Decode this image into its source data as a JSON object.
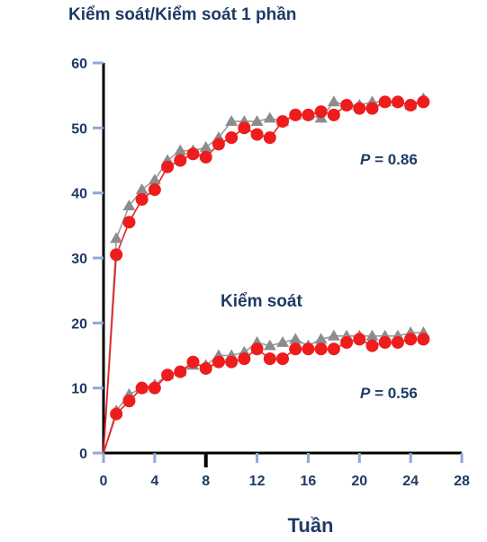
{
  "chart_data": {
    "type": "line",
    "title": "Kiểm soát/Kiểm soát 1 phần",
    "xlabel": "Tuần",
    "ylabel": "",
    "xlim": [
      0,
      28
    ],
    "ylim": [
      0,
      60
    ],
    "xticks": [
      0,
      4,
      8,
      12,
      16,
      20,
      24,
      28
    ],
    "yticks": [
      0,
      10,
      20,
      30,
      40,
      50,
      60
    ],
    "grid": false,
    "annotations": [
      {
        "text": "Kiểm soát"
      },
      {
        "p_label": "P",
        "p_value": "= 0.86"
      },
      {
        "p_label": "P",
        "p_value": "= 0.56"
      }
    ],
    "series": [
      {
        "group": "upper",
        "color": "#8c8c8c",
        "marker": "triangle",
        "x": [
          0,
          1,
          2,
          3,
          4,
          5,
          6,
          7,
          8,
          9,
          10,
          11,
          12,
          13,
          14,
          15,
          16,
          17,
          18,
          19,
          20,
          21,
          22,
          23,
          24,
          25
        ],
        "values": [
          0,
          33,
          38,
          40.5,
          42,
          45,
          46.5,
          46.5,
          47,
          48.5,
          51,
          51,
          51,
          51.5,
          51,
          52,
          52,
          51.5,
          54,
          53.5,
          53.5,
          54,
          54,
          54,
          53.5,
          54.5
        ]
      },
      {
        "group": "upper",
        "color": "#ee1c1c",
        "marker": "circle",
        "x": [
          0,
          1,
          2,
          3,
          4,
          5,
          6,
          7,
          8,
          9,
          10,
          11,
          12,
          13,
          14,
          15,
          16,
          17,
          18,
          19,
          20,
          21,
          22,
          23,
          24,
          25
        ],
        "values": [
          0,
          30.5,
          35.5,
          39,
          40.5,
          44,
          45,
          46,
          45.5,
          47.5,
          48.5,
          50,
          49,
          48.5,
          51,
          52,
          52,
          52.5,
          52,
          53.5,
          53,
          53,
          54,
          54,
          53.5,
          54
        ]
      },
      {
        "group": "lower",
        "color": "#8c8c8c",
        "marker": "triangle",
        "x": [
          0,
          1,
          2,
          3,
          4,
          5,
          6,
          7,
          8,
          9,
          10,
          11,
          12,
          13,
          14,
          15,
          16,
          17,
          18,
          19,
          20,
          21,
          22,
          23,
          24,
          25
        ],
        "values": [
          0,
          6.5,
          9,
          10,
          10.5,
          12,
          12.5,
          13.5,
          13.5,
          15,
          15,
          15.5,
          17,
          16.5,
          17,
          17.5,
          16.5,
          17.5,
          18,
          18,
          18,
          18,
          18,
          18,
          18.5,
          18.5
        ]
      },
      {
        "group": "lower",
        "color": "#ee1c1c",
        "marker": "circle",
        "x": [
          0,
          1,
          2,
          3,
          4,
          5,
          6,
          7,
          8,
          9,
          10,
          11,
          12,
          13,
          14,
          15,
          16,
          17,
          18,
          19,
          20,
          21,
          22,
          23,
          24,
          25
        ],
        "values": [
          0,
          6,
          8,
          10,
          10,
          12,
          12.5,
          14,
          13,
          14,
          14,
          14.5,
          16,
          14.5,
          14.5,
          16,
          16,
          16,
          16,
          17,
          17.5,
          16.5,
          17,
          17,
          17.5,
          17.5
        ]
      }
    ]
  }
}
